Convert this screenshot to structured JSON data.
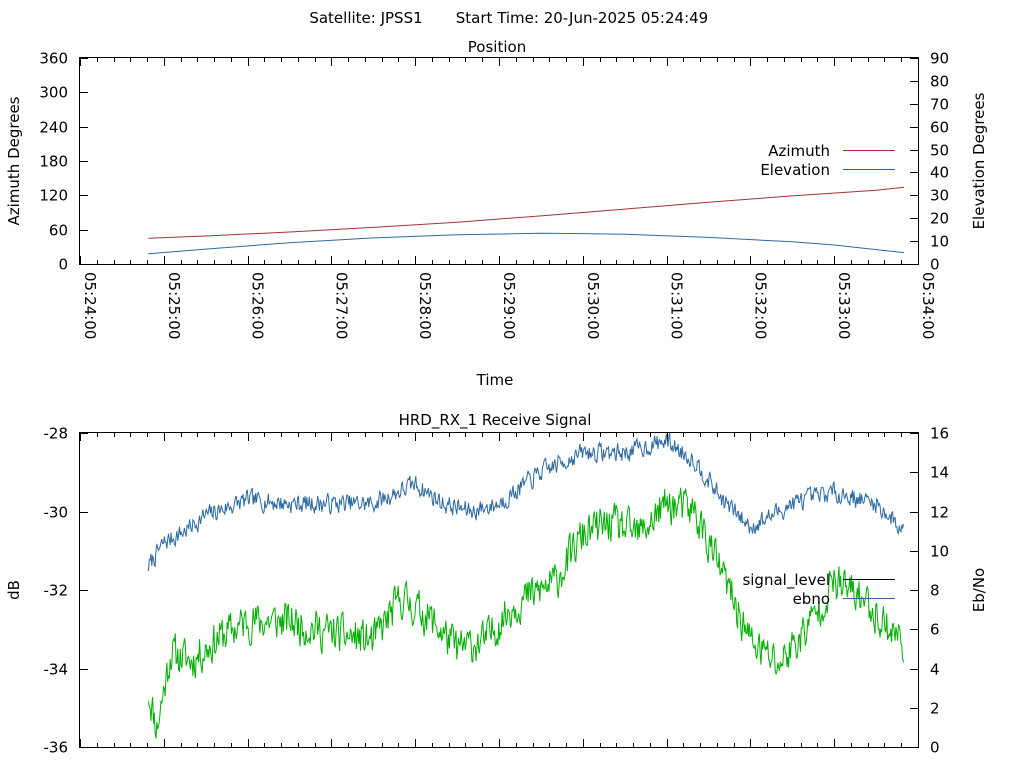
{
  "header": {
    "satellite_label": "Satellite: JPSS1",
    "start_time_label": "Start Time: 20-Jun-2025 05:24:49"
  },
  "colors": {
    "azimuth": "#a83232",
    "elevation": "#2d6aa0",
    "signal_level": "#000000",
    "ebno": "#2d6aa0",
    "ebno_trace_top": "#2d6aa0",
    "signal_trace_green": "#00b000",
    "axis": "#000000"
  },
  "chart_data": [
    {
      "type": "line",
      "title": "Position",
      "xlabel": "Time",
      "ylabel": "Azimuth Degrees",
      "y2label": "Elevation Degrees",
      "x_ticks": [
        "05:24:00",
        "05:25:00",
        "05:26:00",
        "05:27:00",
        "05:28:00",
        "05:29:00",
        "05:30:00",
        "05:31:00",
        "05:32:00",
        "05:33:00",
        "05:34:00"
      ],
      "xlim": [
        "05:24:00",
        "05:34:00"
      ],
      "ylim": [
        0,
        360
      ],
      "y_ticks": [
        0,
        60,
        120,
        180,
        240,
        300,
        360
      ],
      "y2lim": [
        0,
        90
      ],
      "y2_ticks": [
        0,
        10,
        20,
        30,
        40,
        50,
        60,
        70,
        80,
        90
      ],
      "legend_position": "right",
      "series": [
        {
          "name": "Azimuth",
          "axis": "y",
          "x": [
            "05:24:49",
            "05:25:30",
            "05:26:30",
            "05:27:30",
            "05:28:30",
            "05:29:30",
            "05:30:30",
            "05:31:30",
            "05:32:30",
            "05:33:30",
            "05:33:50"
          ],
          "values": [
            45,
            49,
            56,
            64,
            73,
            84,
            96,
            108,
            119,
            129,
            134
          ]
        },
        {
          "name": "Elevation",
          "axis": "y2",
          "x": [
            "05:24:49",
            "05:25:30",
            "05:26:30",
            "05:27:30",
            "05:28:30",
            "05:29:30",
            "05:30:00",
            "05:30:30",
            "05:31:30",
            "05:32:30",
            "05:33:00",
            "05:33:50"
          ],
          "values": [
            4.5,
            6.5,
            9.3,
            11.4,
            12.8,
            13.4,
            13.3,
            13.0,
            11.6,
            9.7,
            8.3,
            5.0
          ]
        }
      ]
    },
    {
      "type": "line",
      "title": "HRD_RX_1 Receive Signal",
      "xlabel": "",
      "ylabel": "dB",
      "y2label": "Eb/No",
      "xlim": [
        "05:24:00",
        "05:34:00"
      ],
      "ylim": [
        -36,
        -28
      ],
      "y_ticks": [
        -36,
        -34,
        -32,
        -30,
        -28
      ],
      "y2lim": [
        0,
        16
      ],
      "y2_ticks": [
        0,
        2,
        4,
        6,
        8,
        10,
        12,
        14,
        16
      ],
      "legend_position": "right",
      "legend": [
        "signal_level",
        "ebno"
      ],
      "series": [
        {
          "axis": "y",
          "x": [
            "05:24:49",
            "05:25:00",
            "05:25:15",
            "05:25:30",
            "05:26:00",
            "05:26:30",
            "05:27:00",
            "05:27:30",
            "05:28:00",
            "05:28:20",
            "05:28:40",
            "05:29:00",
            "05:29:30",
            "05:30:00",
            "05:30:30",
            "05:31:00",
            "05:31:20",
            "05:31:40",
            "05:32:00",
            "05:32:30",
            "05:33:00",
            "05:33:30",
            "05:33:50"
          ],
          "values": [
            -31.4,
            -30.8,
            -30.5,
            -30.1,
            -29.7,
            -29.8,
            -29.8,
            -29.8,
            -29.3,
            -29.8,
            -30.0,
            -29.8,
            -29.0,
            -28.5,
            -28.5,
            -28.2,
            -28.7,
            -29.7,
            -30.4,
            -29.8,
            -29.5,
            -29.8,
            -30.5
          ]
        },
        {
          "axis": "y",
          "x": [
            "05:24:49",
            "05:24:55",
            "05:25:05",
            "05:25:20",
            "05:25:40",
            "05:26:00",
            "05:26:30",
            "05:27:00",
            "05:27:30",
            "05:27:50",
            "05:28:10",
            "05:28:30",
            "05:28:50",
            "05:29:10",
            "05:29:40",
            "05:30:00",
            "05:30:20",
            "05:30:40",
            "05:31:00",
            "05:31:20",
            "05:31:40",
            "05:32:00",
            "05:32:20",
            "05:32:40",
            "05:33:00",
            "05:33:20",
            "05:33:40",
            "05:33:50"
          ],
          "values": [
            -34.6,
            -35.5,
            -33.6,
            -33.8,
            -33.2,
            -32.8,
            -32.8,
            -33.1,
            -33.3,
            -32.2,
            -32.7,
            -33.5,
            -33.3,
            -32.4,
            -31.8,
            -30.6,
            -30.3,
            -30.6,
            -29.8,
            -30.0,
            -31.6,
            -33.3,
            -33.9,
            -33.0,
            -31.8,
            -32.2,
            -33.0,
            -33.3
          ]
        }
      ]
    }
  ]
}
